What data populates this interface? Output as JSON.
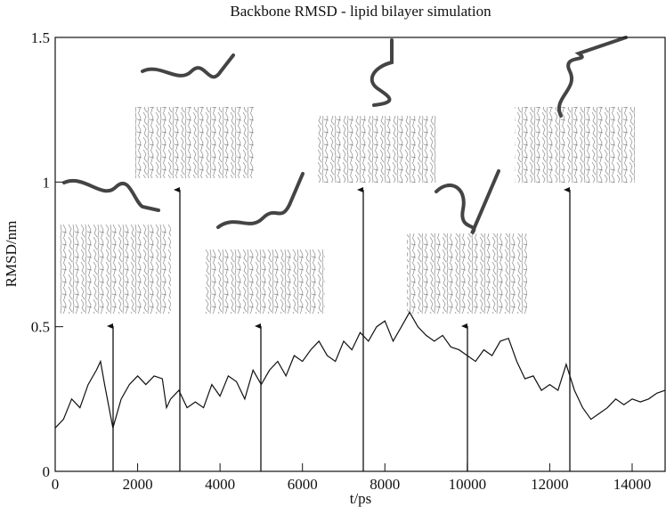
{
  "chart_data": {
    "type": "line",
    "title": "Backbone RMSD - lipid bilayer simulation",
    "x_label": "t/ps",
    "y_label": "RMSD/nm",
    "x": [
      0,
      200,
      400,
      600,
      800,
      1000,
      1100,
      1200,
      1400,
      1600,
      1800,
      2000,
      2200,
      2400,
      2600,
      2700,
      2800,
      3000,
      3200,
      3400,
      3600,
      3800,
      4000,
      4200,
      4400,
      4600,
      4800,
      5000,
      5200,
      5400,
      5600,
      5800,
      6000,
      6200,
      6400,
      6600,
      6800,
      7000,
      7200,
      7400,
      7600,
      7800,
      8000,
      8200,
      8400,
      8600,
      8800,
      9000,
      9200,
      9400,
      9600,
      9800,
      10000,
      10200,
      10400,
      10600,
      10800,
      11000,
      11200,
      11400,
      11600,
      11800,
      12000,
      12200,
      12400,
      12600,
      12800,
      13000,
      13200,
      13400,
      13600,
      13800,
      14000,
      14200,
      14400,
      14600,
      14800
    ],
    "values": [
      0.15,
      0.18,
      0.25,
      0.22,
      0.3,
      0.35,
      0.38,
      0.3,
      0.15,
      0.25,
      0.3,
      0.33,
      0.3,
      0.33,
      0.32,
      0.22,
      0.25,
      0.28,
      0.22,
      0.24,
      0.22,
      0.3,
      0.26,
      0.33,
      0.31,
      0.25,
      0.35,
      0.3,
      0.35,
      0.38,
      0.33,
      0.4,
      0.38,
      0.42,
      0.45,
      0.4,
      0.38,
      0.45,
      0.42,
      0.48,
      0.45,
      0.5,
      0.52,
      0.45,
      0.5,
      0.55,
      0.5,
      0.47,
      0.45,
      0.47,
      0.43,
      0.42,
      0.4,
      0.38,
      0.42,
      0.4,
      0.45,
      0.46,
      0.38,
      0.32,
      0.33,
      0.28,
      0.3,
      0.28,
      0.37,
      0.28,
      0.22,
      0.18,
      0.2,
      0.22,
      0.25,
      0.23,
      0.25,
      0.24,
      0.25,
      0.27,
      0.28
    ],
    "color": "#111111",
    "xlim": [
      0,
      14800
    ],
    "xticks": [
      0,
      2000,
      4000,
      6000,
      8000,
      10000,
      12000,
      14000
    ],
    "ylim": [
      0,
      1.5
    ],
    "yticks": [
      0,
      0.5,
      1,
      1.5
    ]
  }
}
